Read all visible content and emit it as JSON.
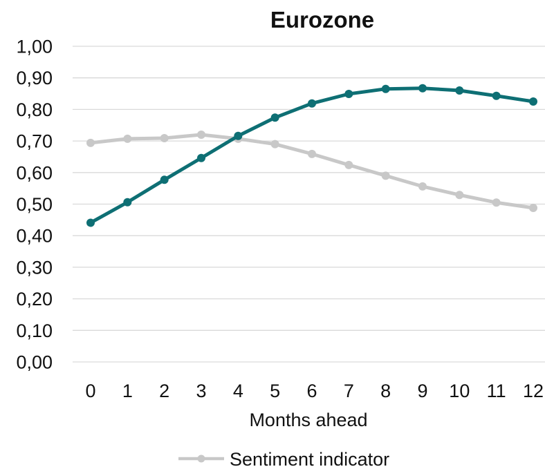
{
  "chart_data": {
    "type": "line",
    "title": "Eurozone",
    "xlabel": "Months ahead",
    "ylabel": "",
    "x": [
      0,
      1,
      2,
      3,
      4,
      5,
      6,
      7,
      8,
      9,
      10,
      11,
      12
    ],
    "x_tick_labels": [
      "0",
      "1",
      "2",
      "3",
      "4",
      "5",
      "6",
      "7",
      "8",
      "9",
      "10",
      "11",
      "12"
    ],
    "ylim": [
      0,
      1
    ],
    "y_tick_labels": [
      "0,00",
      "0,10",
      "0,20",
      "0,30",
      "0,40",
      "0,50",
      "0,60",
      "0,70",
      "0,80",
      "0,90",
      "1,00"
    ],
    "y_ticks": [
      0,
      0.1,
      0.2,
      0.3,
      0.4,
      0.5,
      0.6,
      0.7,
      0.8,
      0.9,
      1.0
    ],
    "grid": true,
    "legend_position": "bottom",
    "series": [
      {
        "name": "Sentiment indicator",
        "color": "#c8c8c8",
        "in_legend": true,
        "values": [
          0.694,
          0.707,
          0.709,
          0.72,
          0.707,
          0.69,
          0.659,
          0.624,
          0.59,
          0.556,
          0.529,
          0.505,
          0.488
        ]
      },
      {
        "color": "#0e6f74",
        "in_legend": false,
        "values": [
          0.441,
          0.506,
          0.577,
          0.646,
          0.716,
          0.774,
          0.819,
          0.849,
          0.865,
          0.867,
          0.86,
          0.843,
          0.825
        ]
      }
    ]
  }
}
